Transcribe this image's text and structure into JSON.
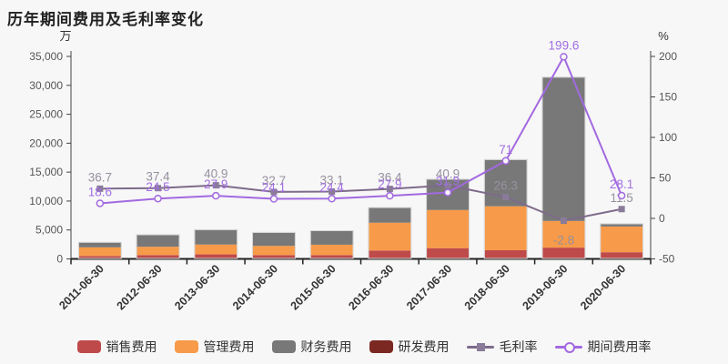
{
  "title": "历年期间费用及毛利率变化",
  "axes": {
    "left_unit": "万",
    "right_unit": "%"
  },
  "chart_data": {
    "type": "bar",
    "subtype": "stacked-bars-with-lines",
    "title": "历年期间费用及毛利率变化",
    "categories": [
      "2011-06-30",
      "2012-06-30",
      "2013-06-30",
      "2014-06-30",
      "2015-06-30",
      "2016-06-30",
      "2017-06-30",
      "2018-06-30",
      "2019-06-30",
      "2020-06-30"
    ],
    "bar_series": [
      {
        "id": "sales-expense",
        "name": "销售费用",
        "color": "#bf4a4a",
        "values": [
          500,
          650,
          780,
          650,
          650,
          1450,
          1850,
          1500,
          1950,
          1150
        ]
      },
      {
        "id": "admin-expense",
        "name": "管理费用",
        "color": "#f79a49",
        "values": [
          1500,
          1450,
          1700,
          1600,
          1800,
          4800,
          6600,
          7600,
          4600,
          4450
        ]
      },
      {
        "id": "finance-expense",
        "name": "财务费用",
        "color": "#787878",
        "values": [
          800,
          2000,
          2500,
          2250,
          2350,
          2550,
          5250,
          8000,
          24800,
          400
        ]
      },
      {
        "id": "rd-expense",
        "name": "研发费用",
        "color": "#7b2823",
        "values": [
          0,
          0,
          0,
          0,
          0,
          0,
          0,
          0,
          0,
          0
        ]
      }
    ],
    "line_series": [
      {
        "id": "gross-margin",
        "name": "毛利率",
        "axis": "right",
        "color": "#7d6b8a",
        "marker": "square",
        "marker_color": "#8a7c99",
        "label_color": "#97909e",
        "values": [
          36.7,
          37.4,
          40.9,
          32.7,
          33.1,
          36.4,
          40.9,
          26.3,
          -2.8,
          11.5
        ]
      },
      {
        "id": "expense-ratio",
        "name": "期间费用率",
        "axis": "right",
        "color": "#a269e0",
        "marker": "circle-open",
        "marker_color": "#a269e0",
        "label_color": "#a26de3",
        "values": [
          18.6,
          24.5,
          27.9,
          24.1,
          24.4,
          27.9,
          31.9,
          71,
          199.6,
          28.1
        ]
      }
    ],
    "left_axis": {
      "title": "万",
      "min": 0,
      "max": 35000,
      "step": 5000,
      "tick_labels": [
        "0",
        "5,000",
        "10,000",
        "15,000",
        "20,000",
        "25,000",
        "30,000",
        "35,000"
      ]
    },
    "right_axis": {
      "title": "%",
      "min": -50,
      "max": 200,
      "step": 50,
      "tick_labels": [
        "-50",
        "0",
        "50",
        "100",
        "150",
        "200"
      ]
    },
    "grid": false,
    "legend_position": "bottom"
  }
}
